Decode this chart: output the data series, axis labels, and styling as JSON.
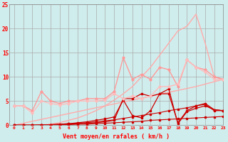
{
  "x": [
    0,
    1,
    2,
    3,
    4,
    5,
    6,
    7,
    8,
    9,
    10,
    11,
    12,
    13,
    14,
    15,
    16,
    17,
    18,
    19,
    20,
    21,
    22,
    23
  ],
  "lines": [
    {
      "y": [
        0.0,
        0.0,
        0.0,
        0.0,
        0.0,
        0.1,
        0.1,
        0.2,
        0.2,
        0.3,
        0.4,
        0.5,
        0.6,
        0.7,
        0.8,
        1.0,
        1.1,
        1.2,
        1.3,
        1.4,
        1.5,
        1.6,
        1.7,
        1.8
      ],
      "color": "#cc0000",
      "lw": 0.8,
      "marker": "s",
      "ms": 1.5
    },
    {
      "y": [
        0.0,
        0.0,
        0.0,
        0.0,
        0.1,
        0.2,
        0.3,
        0.4,
        0.5,
        0.7,
        0.9,
        1.1,
        1.4,
        1.7,
        2.0,
        2.3,
        2.6,
        3.0,
        3.3,
        3.6,
        4.0,
        4.3,
        3.0,
        3.0
      ],
      "color": "#cc0000",
      "lw": 0.8,
      "marker": "s",
      "ms": 1.5
    },
    {
      "y": [
        0.0,
        0.0,
        0.0,
        0.0,
        0.1,
        0.1,
        0.2,
        0.3,
        0.4,
        0.5,
        0.7,
        1.0,
        5.5,
        5.5,
        6.5,
        6.0,
        6.5,
        7.5,
        0.3,
        2.8,
        3.5,
        4.0,
        3.2,
        3.0
      ],
      "color": "#cc0000",
      "lw": 0.9,
      "marker": "s",
      "ms": 1.5
    },
    {
      "y": [
        0.0,
        0.0,
        0.0,
        0.1,
        0.1,
        0.2,
        0.3,
        0.5,
        0.7,
        1.0,
        1.3,
        1.7,
        5.2,
        2.0,
        1.5,
        3.0,
        6.5,
        6.5,
        0.5,
        3.0,
        4.0,
        4.5,
        3.2,
        3.0
      ],
      "color": "#cc0000",
      "lw": 0.9,
      "marker": "s",
      "ms": 1.5
    },
    {
      "y": [
        0.0,
        0.4,
        0.8,
        1.2,
        1.6,
        2.0,
        2.4,
        2.8,
        3.2,
        3.6,
        4.0,
        4.4,
        4.8,
        5.2,
        5.6,
        6.0,
        6.4,
        6.8,
        7.2,
        7.6,
        8.0,
        8.5,
        9.0,
        9.5
      ],
      "color": "#ffaaaa",
      "lw": 1.0,
      "marker": null,
      "ms": 0
    },
    {
      "y": [
        4.0,
        4.0,
        3.0,
        7.0,
        5.0,
        4.5,
        5.0,
        5.0,
        5.5,
        5.5,
        5.5,
        7.0,
        14.0,
        9.5,
        10.5,
        9.5,
        12.0,
        11.5,
        8.0,
        13.5,
        12.0,
        11.5,
        10.0,
        9.5
      ],
      "color": "#ff9999",
      "lw": 1.0,
      "marker": "o",
      "ms": 2.0
    },
    {
      "y": [
        4.0,
        4.0,
        2.5,
        5.0,
        4.5,
        4.2,
        4.5,
        5.0,
        5.0,
        5.0,
        5.2,
        6.5,
        5.5,
        6.0,
        5.5,
        6.0,
        8.0,
        8.0,
        8.5,
        13.5,
        12.0,
        11.0,
        9.5,
        9.5
      ],
      "color": "#ffbbbb",
      "lw": 1.0,
      "marker": "o",
      "ms": 2.0
    },
    {
      "y": [
        0.0,
        0.0,
        0.0,
        0.0,
        0.2,
        0.5,
        1.0,
        1.5,
        2.2,
        3.0,
        4.0,
        5.2,
        6.5,
        8.0,
        10.0,
        12.0,
        14.5,
        17.0,
        19.5,
        20.5,
        23.0,
        17.0,
        10.0,
        9.5
      ],
      "color": "#ffaaaa",
      "lw": 1.0,
      "marker": null,
      "ms": 0
    }
  ],
  "bg_color": "#d0eded",
  "grid_color": "#aaaaaa",
  "xlabel": "Vent moyen/en rafales ( km/h )",
  "xlabel_color": "#ff0000",
  "tick_color": "#ff0000",
  "axis_color": "#888888",
  "xlim": [
    -0.5,
    23
  ],
  "ylim": [
    0,
    25
  ],
  "yticks": [
    0,
    5,
    10,
    15,
    20,
    25
  ],
  "xticks": [
    0,
    1,
    2,
    3,
    4,
    5,
    6,
    7,
    8,
    9,
    10,
    11,
    12,
    13,
    14,
    15,
    16,
    17,
    18,
    19,
    20,
    21,
    22,
    23
  ]
}
